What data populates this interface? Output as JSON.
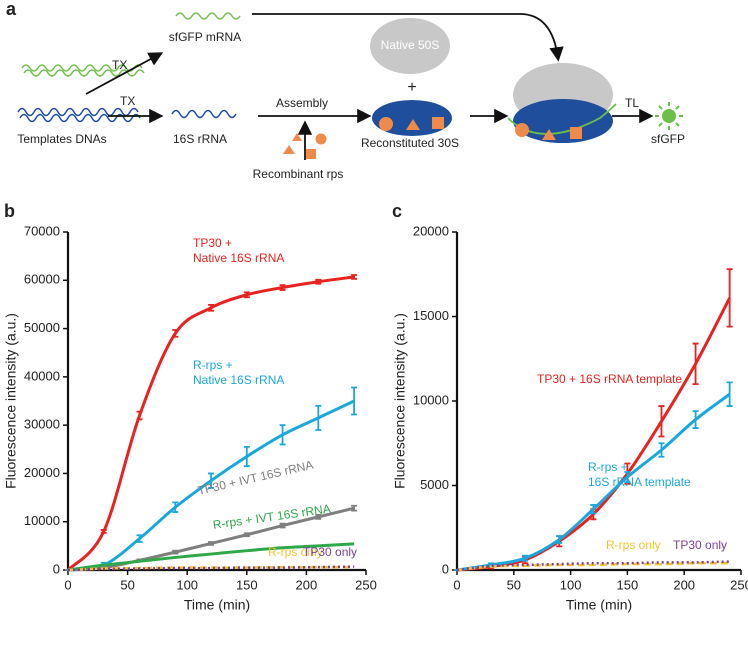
{
  "diagram": {
    "panel": "a",
    "tx_top": "TX",
    "sfgfp_mrna": "sfGFP mRNA",
    "templates": "Templates DNAs",
    "tx_bottom": "TX",
    "rrna": "16S rRNA",
    "assembly": "Assembly",
    "recombinant": "Recombinant rps",
    "native_50s": "Native 50S",
    "plus": "+",
    "reconstituted": "Reconstituted 30S",
    "tl": "TL",
    "sfgfp": "sfGFP"
  },
  "chart_data": [
    {
      "type": "line",
      "panel": "b",
      "x_label": "Time (min)",
      "y_label": "Fluorescence intensity (a.u.)",
      "x": [
        0,
        30,
        60,
        90,
        120,
        150,
        180,
        210,
        240
      ],
      "xlim": [
        0,
        250
      ],
      "xticks": [
        0,
        50,
        100,
        150,
        200,
        250
      ],
      "ylim": [
        0,
        70000
      ],
      "yticks": [
        0,
        10000,
        20000,
        30000,
        40000,
        50000,
        60000,
        70000
      ],
      "series": [
        {
          "name": "TP30 +\nNative 16S rRNA",
          "color": "#e8221f",
          "line_style": "solid",
          "values": [
            0,
            8000,
            32000,
            49000,
            54300,
            57000,
            58500,
            59700,
            60700
          ],
          "errors": [
            0,
            300,
            800,
            700,
            600,
            500,
            500,
            400,
            400
          ]
        },
        {
          "name": "R-rps +\nNative 16S rRNA",
          "color": "#1aa7dc",
          "line_style": "solid",
          "values": [
            0,
            1000,
            6500,
            13000,
            18500,
            23500,
            28000,
            31500,
            35000
          ],
          "errors": [
            0,
            500,
            700,
            1000,
            1500,
            2000,
            2000,
            2500,
            2800
          ]
        },
        {
          "name": "TP30 + IVT 16S rRNA",
          "color": "#7f7f7f",
          "line_style": "solid",
          "values": [
            0,
            500,
            2000,
            3700,
            5500,
            7300,
            9200,
            11000,
            12800
          ],
          "errors": [
            0,
            200,
            200,
            300,
            300,
            300,
            400,
            400,
            500
          ]
        },
        {
          "name": "R-rps + IVT 16S rRNA",
          "color": "#2fa84a",
          "line_style": "solid",
          "values": [
            0,
            1000,
            1800,
            2600,
            3300,
            4000,
            4600,
            5000,
            5400
          ]
        },
        {
          "name": "R-rps only",
          "color": "#f4c430",
          "line_style": "dashed",
          "values": [
            0,
            300,
            400,
            500,
            500,
            500,
            600,
            600,
            600
          ]
        },
        {
          "name": "TP30 only",
          "color": "#7b3f98",
          "line_style": "dotted",
          "values": [
            0,
            200,
            300,
            400,
            400,
            500,
            500,
            600,
            700
          ]
        }
      ]
    },
    {
      "type": "line",
      "panel": "c",
      "x_label": "Time (min)",
      "y_label": "Fluorescence intensity (a.u.)",
      "x": [
        0,
        30,
        60,
        90,
        120,
        150,
        180,
        210,
        240
      ],
      "xlim": [
        0,
        250
      ],
      "xticks": [
        0,
        50,
        100,
        150,
        200,
        250
      ],
      "ylim": [
        0,
        20000
      ],
      "yticks": [
        0,
        5000,
        10000,
        15000,
        20000
      ],
      "series": [
        {
          "name": "TP30 + 16S rRNA template",
          "color": "#e8221f",
          "line_style": "solid",
          "values": [
            0,
            200,
            600,
            1700,
            3300,
            5700,
            8800,
            12200,
            16100
          ],
          "errors": [
            0,
            100,
            200,
            300,
            300,
            600,
            900,
            1200,
            1700
          ]
        },
        {
          "name": "R-rps +\n16S rRNA template",
          "color": "#1aa7dc",
          "line_style": "solid",
          "values": [
            0,
            300,
            700,
            1800,
            3600,
            5500,
            7100,
            8900,
            10400
          ],
          "errors": [
            0,
            100,
            150,
            200,
            250,
            300,
            400,
            500,
            700
          ]
        },
        {
          "name": "R-rps only",
          "color": "#f4c430",
          "line_style": "dashed",
          "values": [
            0,
            200,
            250,
            300,
            300,
            350,
            350,
            400,
            400
          ]
        },
        {
          "name": "TP30 only",
          "color": "#7b3f98",
          "line_style": "dotted",
          "values": [
            0,
            250,
            300,
            350,
            400,
            400,
            450,
            450,
            500
          ]
        }
      ]
    }
  ]
}
